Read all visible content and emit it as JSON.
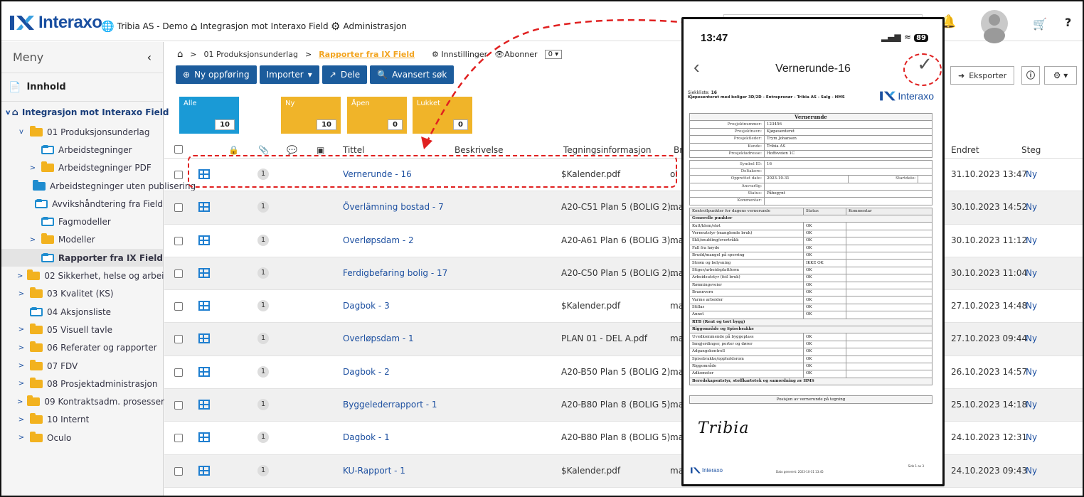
{
  "topbar": {
    "brand": "Interaxo",
    "company": "Tribia AS - Demo",
    "nav_project": "Integrasjon mot Interaxo Field",
    "nav_admin": "Administrasjon"
  },
  "sidebar": {
    "menu_label": "Meny",
    "innhold_label": "Innhold",
    "root": "Integrasjon mot Interaxo Field",
    "items": [
      {
        "label": "01 Produksjonsunderlag",
        "indent": 1,
        "caret": "v",
        "folder": "yellow"
      },
      {
        "label": "Arbeidstegninger",
        "indent": 2,
        "caret": "",
        "folder": "outline"
      },
      {
        "label": "Arbeidstegninger PDF",
        "indent": 2,
        "caret": ">",
        "folder": "yellow"
      },
      {
        "label": "Arbeidstegninger uten publisering",
        "indent": 2,
        "caret": "",
        "folder": "blue"
      },
      {
        "label": "Avvikshåndtering fra Field",
        "indent": 2,
        "caret": "",
        "folder": "outline"
      },
      {
        "label": "Fagmodeller",
        "indent": 2,
        "caret": "",
        "folder": "outline"
      },
      {
        "label": "Modeller",
        "indent": 2,
        "caret": ">",
        "folder": "yellow"
      },
      {
        "label": "Rapporter fra IX Field",
        "indent": 2,
        "caret": "",
        "folder": "outline",
        "active": true
      },
      {
        "label": "02 Sikkerhet, helse og arbeidsmiljø",
        "indent": 1,
        "caret": ">",
        "folder": "yellow"
      },
      {
        "label": "03 Kvalitet (KS)",
        "indent": 1,
        "caret": ">",
        "folder": "yellow"
      },
      {
        "label": "04 Aksjonsliste",
        "indent": 1,
        "caret": "",
        "folder": "outline"
      },
      {
        "label": "05 Visuell tavle",
        "indent": 1,
        "caret": ">",
        "folder": "yellow"
      },
      {
        "label": "06 Referater og rapporter",
        "indent": 1,
        "caret": ">",
        "folder": "yellow"
      },
      {
        "label": "07 FDV",
        "indent": 1,
        "caret": ">",
        "folder": "yellow"
      },
      {
        "label": "08 Prosjektadministrasjon",
        "indent": 1,
        "caret": ">",
        "folder": "yellow"
      },
      {
        "label": "09 Kontraktsadm. prosesser",
        "indent": 1,
        "caret": ">",
        "folder": "yellow"
      },
      {
        "label": "10 Internt",
        "indent": 1,
        "caret": ">",
        "folder": "yellow"
      },
      {
        "label": "Oculo",
        "indent": 1,
        "caret": ">",
        "folder": "yellow"
      }
    ]
  },
  "breadcrumb": {
    "sep": ">",
    "level1": "01 Produksjonsunderlag",
    "current": "Rapporter fra IX Field",
    "settings": "Innstillinger",
    "subscribe": "Abonner",
    "subscribe_count": "0"
  },
  "toolbar": {
    "new_entry": "Ny oppføring",
    "import": "Importer",
    "share": "Dele",
    "advanced_search": "Avansert søk",
    "export": "Eksporter"
  },
  "tiles": [
    {
      "label": "Alle",
      "count": "10",
      "color": "#1a9ad6"
    },
    {
      "label": "Ny",
      "count": "10",
      "color": "#f0b429"
    },
    {
      "label": "Åpen",
      "count": "0",
      "color": "#f0b429"
    },
    {
      "label": "Lukket",
      "count": "0",
      "color": "#f0b429"
    }
  ],
  "table": {
    "headers": {
      "title": "Tittel",
      "description": "Beskrivelse",
      "drawing": "Tegningsinformasjon",
      "br": "Br",
      "changed": "Endret",
      "step": "Steg"
    },
    "rows": [
      {
        "title": "Vernerunde - 16",
        "drawing": "$Kalender.pdf",
        "br": "ol",
        "changed": "31.10.2023 13:47",
        "step": "Ny",
        "attachments": "1"
      },
      {
        "title": "Överlämning bostad - 7",
        "drawing": "A20-C51 Plan 5 (BOLIG 2)...",
        "br": "ma",
        "changed": "30.10.2023 14:52",
        "step": "Ny",
        "attachments": "1"
      },
      {
        "title": "Overløpsdam - 2",
        "drawing": "A20-A61 Plan 6 (BOLIG 3)...",
        "br": "ma",
        "changed": "30.10.2023 11:12",
        "step": "Ny",
        "attachments": "1"
      },
      {
        "title": "Ferdigbefaring bolig - 17",
        "drawing": "A20-C50 Plan 5 (BOLIG 2)...",
        "br": "ma",
        "changed": "30.10.2023 11:04",
        "step": "Ny",
        "attachments": "1"
      },
      {
        "title": "Dagbok - 3",
        "drawing": "$Kalender.pdf",
        "br": "ma",
        "changed": "27.10.2023 14:48",
        "step": "Ny",
        "attachments": "1"
      },
      {
        "title": "Overløpsdam - 1",
        "drawing": "PLAN 01 - DEL A.pdf",
        "br": "ma",
        "changed": "27.10.2023 09:44",
        "step": "Ny",
        "attachments": "1"
      },
      {
        "title": "Dagbok - 2",
        "drawing": "A20-B50 Plan 5 (BOLIG 2)...",
        "br": "ma",
        "changed": "26.10.2023 14:57",
        "step": "Ny",
        "attachments": "1"
      },
      {
        "title": "Byggelederrapport - 1",
        "drawing": "A20-B80 Plan 8 (BOLIG 5)...",
        "br": "ma",
        "changed": "25.10.2023 14:18",
        "step": "Ny",
        "attachments": "1"
      },
      {
        "title": "Dagbok - 1",
        "drawing": "A20-B80 Plan 8 (BOLIG 5)...",
        "br": "ma",
        "changed": "24.10.2023 12:31",
        "step": "Ny",
        "attachments": "1"
      },
      {
        "title": "KU-Rapport - 1",
        "drawing": "$Kalender.pdf",
        "br": "ma",
        "changed": "24.10.2023 09:43",
        "step": "Ny",
        "attachments": "1"
      }
    ]
  },
  "phone": {
    "time": "13:47",
    "battery": "89",
    "title": "Vernerunde-16",
    "doc": {
      "checklist_label": "Sjekkliste:",
      "checklist_no": "16",
      "project_line": "Kjøpesenteret med boliger 3D/2D - Entreprenør - Tribia AS - Salg - HMS",
      "brand": "Interaxo",
      "section_title": "Vernerunde",
      "fields": [
        {
          "k": "Prosjektnummer:",
          "v": "123456"
        },
        {
          "k": "Prosjektnavn:",
          "v": "Kjøpesenteret"
        },
        {
          "k": "Prosjektleder:",
          "v": "Trym Johansen"
        },
        {
          "k": "Kunde:",
          "v": "Tribia AS"
        },
        {
          "k": "Prosjektadresse:",
          "v": "Hoffsveien 1C"
        }
      ],
      "fields2": [
        {
          "k": "Symbol ID:",
          "v": "16"
        },
        {
          "k": "Deltakere:",
          "v": ""
        },
        {
          "k": "Opprettet dato:",
          "v": "2023-10-31",
          "k2": "Startdato:"
        },
        {
          "k": "Ansvarlig:",
          "v": ""
        },
        {
          "k": "Status:",
          "v": "Påbegynt"
        },
        {
          "k": "Kommentar:",
          "v": ""
        }
      ],
      "check_headers": [
        "Kontrollpunkter for dagens vernerunde",
        "Status",
        "Kommentar"
      ],
      "groups": [
        {
          "title": "Generelle punkter",
          "items": [
            [
              "Kutt/klem/støt",
              "OK"
            ],
            [
              "Verneutstyr (manglende bruk)",
              "OK"
            ],
            [
              "Skli/snubling/overtråkk",
              "OK"
            ],
            [
              "Fall fra høyde",
              "OK"
            ],
            [
              "Brudd/mangel på sperring",
              "OK"
            ],
            [
              "Strøm og belysning",
              "IKKE OK"
            ],
            [
              "Stiger/arbeidsplattform",
              "OK"
            ],
            [
              "Arbeidsutstyr (feil bruk)",
              "OK"
            ],
            [
              "Rømningsveier",
              "OK"
            ],
            [
              "Brannvern",
              "OK"
            ],
            [
              "Varme arbeider",
              "OK"
            ],
            [
              "Stillas",
              "OK"
            ],
            [
              "Annet",
              "OK"
            ]
          ]
        },
        {
          "title": "RTB (Rent og tørt bygg)",
          "items": []
        },
        {
          "title": "Riggområde og Spisebrakke",
          "items": [
            [
              "Uvedkommende på byggeplass",
              "OK"
            ],
            [
              "Inngjerdinger, porter og dører",
              "OK"
            ],
            [
              "Adgangskontroll",
              "OK"
            ],
            [
              "Spisebrakke/oppholdsrom",
              "OK"
            ],
            [
              "Riggområde",
              "OK"
            ],
            [
              "Adkomster",
              "OK"
            ]
          ]
        },
        {
          "title": "Beredskapsutstyr, stoffkartotek og samordning av HMS",
          "items": []
        }
      ],
      "position_label": "Posisjon av vernerunde på tegning",
      "signature": "Tribia",
      "footer_date": "Dato generert: 2023-10-31 13:45",
      "footer_page": "Side 1 av 3"
    }
  }
}
